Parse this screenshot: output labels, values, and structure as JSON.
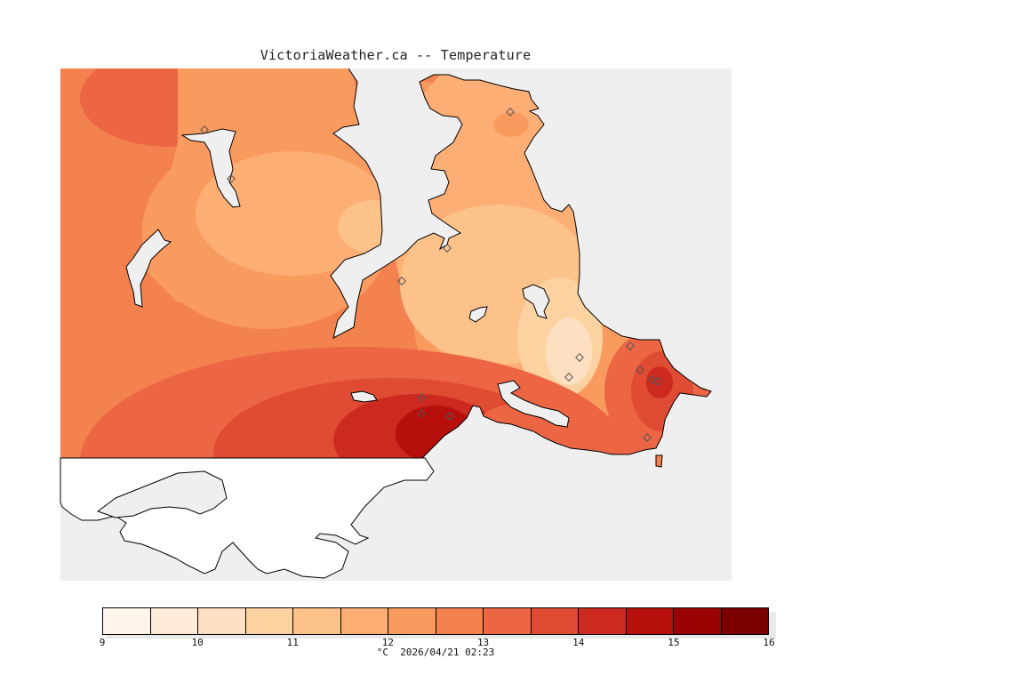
{
  "title": "VictoriaWeather.ca -- Temperature",
  "caption": "°C  2026/04/21 02:23",
  "colors": {
    "sea": "#efefef",
    "land_nodata": "#ffffff",
    "coastline": "#000000",
    "station_marker": "#555555"
  },
  "legend": {
    "unit": "°C",
    "timestamp": "2026/04/21 02:23",
    "tick_labels": [
      "9",
      "10",
      "11",
      "12",
      "13",
      "14",
      "15",
      "16"
    ],
    "bins": [
      {
        "range": "9-9.5",
        "color": "#fff5ea"
      },
      {
        "range": "9.5-10",
        "color": "#feecd8"
      },
      {
        "range": "10-10.5",
        "color": "#fde0c2"
      },
      {
        "range": "10.5-11",
        "color": "#fdd2a1"
      },
      {
        "range": "11-11.5",
        "color": "#fdc18a"
      },
      {
        "range": "11.5-12",
        "color": "#fdae75"
      },
      {
        "range": "12-12.5",
        "color": "#f99a5e"
      },
      {
        "range": "12.5-13",
        "color": "#f3824f"
      },
      {
        "range": "13-13.5",
        "color": "#ec6644"
      },
      {
        "range": "13.5-14",
        "color": "#e04b33"
      },
      {
        "range": "14-14.5",
        "color": "#cc2a1f"
      },
      {
        "range": "14.5-15",
        "color": "#b70f0b"
      },
      {
        "range": "15-15.5",
        "color": "#9a0303"
      },
      {
        "range": "15.5-16",
        "color": "#7a0000"
      }
    ]
  },
  "stations_count_shown": 15
}
